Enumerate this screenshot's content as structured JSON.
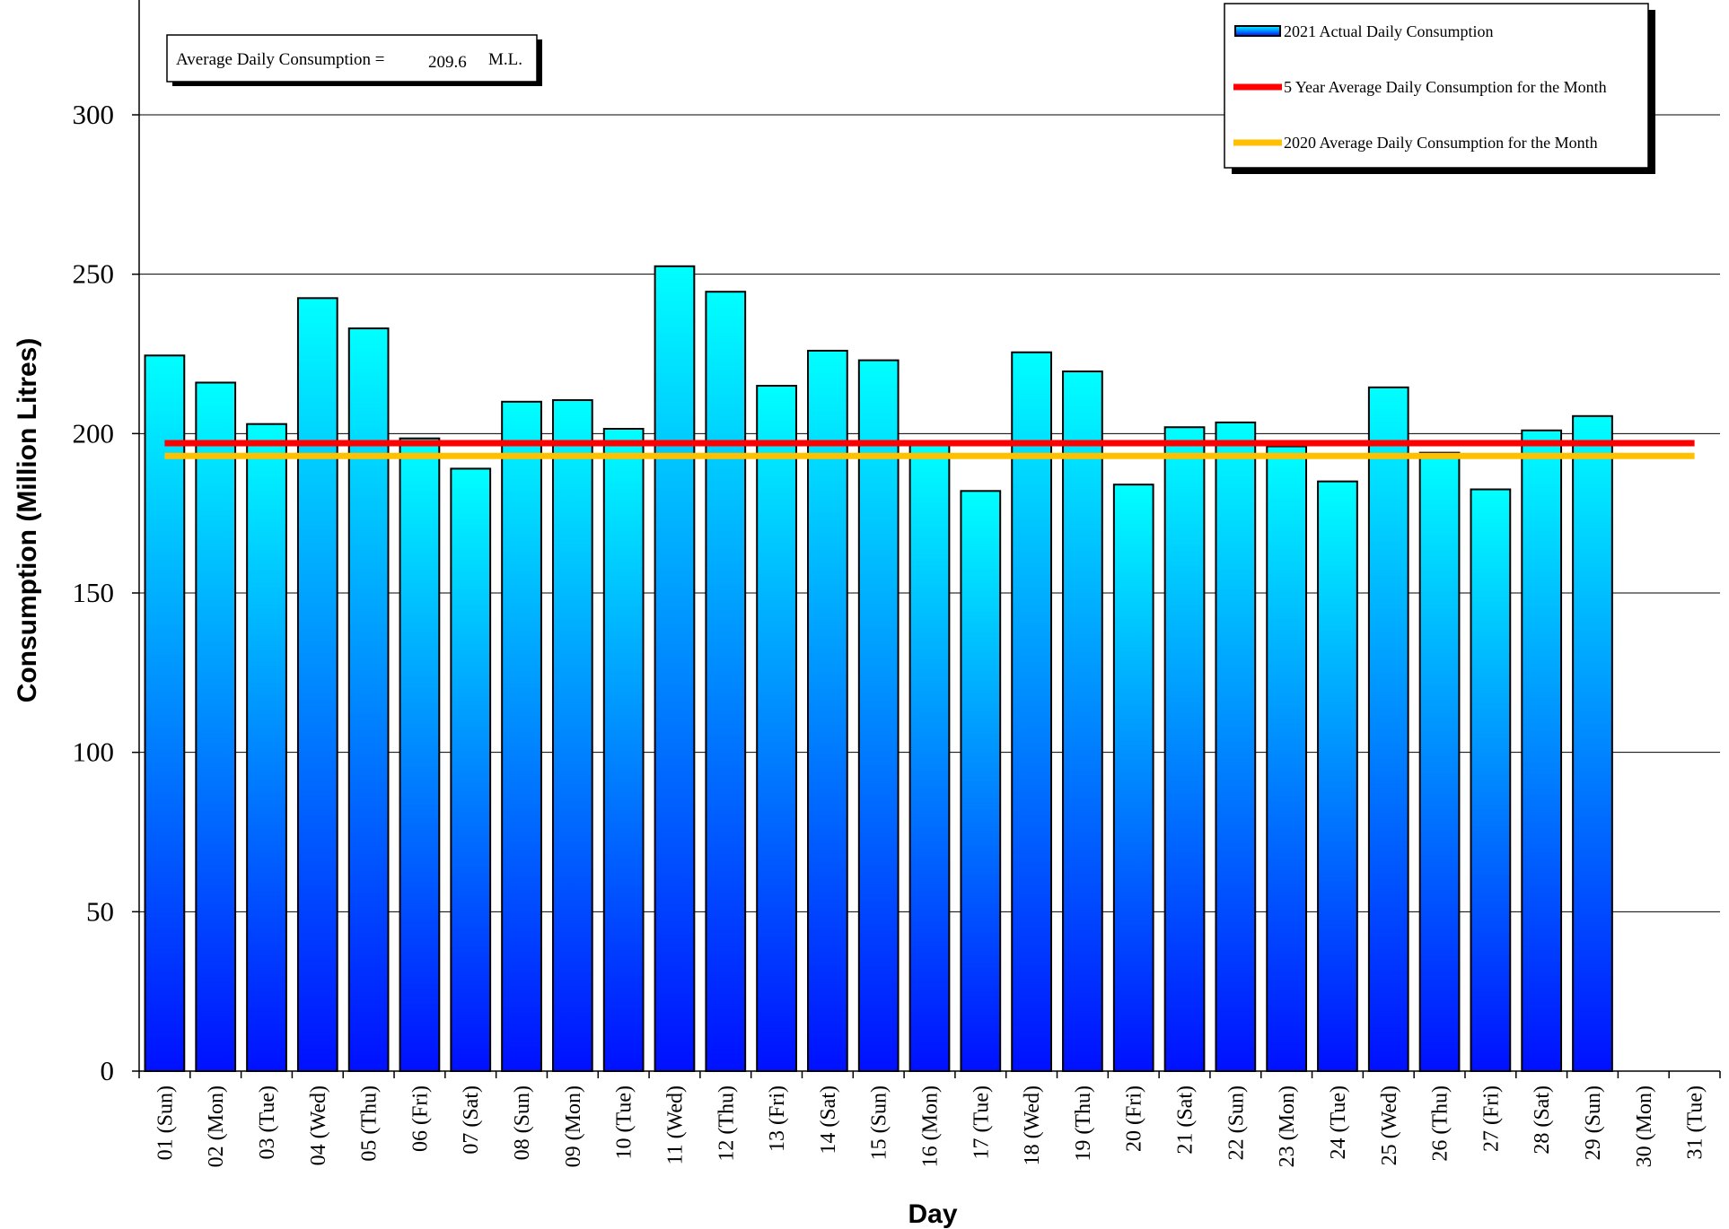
{
  "chart_data": {
    "type": "bar",
    "categories": [
      "01 (Sun)",
      "02 (Mon)",
      "03 (Tue)",
      "04 (Wed)",
      "05 (Thu)",
      "06 (Fri)",
      "07 (Sat)",
      "08 (Sun)",
      "09 (Mon)",
      "10 (Tue)",
      "11 (Wed)",
      "12 (Thu)",
      "13 (Fri)",
      "14 (Sat)",
      "15 (Sun)",
      "16 (Mon)",
      "17 (Tue)",
      "18 (Wed)",
      "19 (Thu)",
      "20 (Fri)",
      "21 (Sat)",
      "22 (Sun)",
      "23 (Mon)",
      "24 (Tue)",
      "25 (Wed)",
      "26 (Thu)",
      "27 (Fri)",
      "28 (Sat)",
      "29 (Sun)",
      "30 (Mon)",
      "31 (Tue)"
    ],
    "series": [
      {
        "name": "2021 Actual Daily Consumption",
        "kind": "bar",
        "values": [
          224.5,
          216,
          203,
          242.5,
          233,
          198.5,
          189,
          210,
          210.5,
          201.5,
          252.5,
          244.5,
          215,
          226,
          223,
          196.5,
          182,
          225.5,
          219.5,
          184,
          202,
          203.5,
          196,
          185,
          214.5,
          194,
          182.5,
          201,
          205.5,
          null,
          null
        ],
        "color_top": "#00ffff",
        "color_bottom": "#0010ff"
      },
      {
        "name": "5 Year Average Daily Consumption for the Month",
        "kind": "line",
        "value": 197,
        "color": "#ff0000"
      },
      {
        "name": "2020 Average Daily Consumption for the Month",
        "kind": "line",
        "value": 193,
        "color": "#ffc000"
      }
    ],
    "xlabel": "Day",
    "ylabel": "Consumption (Million Litres)",
    "ylim": [
      0,
      300
    ],
    "yticks": [
      0,
      50,
      100,
      150,
      200,
      250,
      300
    ],
    "grid": true,
    "legend_position": "top-right",
    "average_box": {
      "label": "Average Daily Consumption =",
      "value": "209.6",
      "unit": "M.L."
    }
  }
}
